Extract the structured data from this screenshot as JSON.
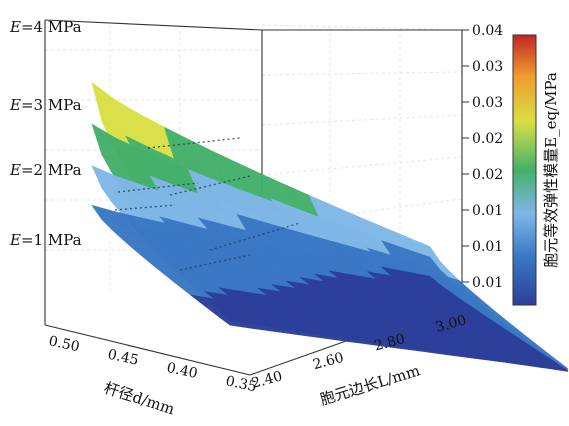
{
  "chart_data": {
    "type": "surface3d",
    "title": "",
    "xlabel": "杆径d/mm",
    "ylabel": "胞元边长L/mm",
    "zlabel": "胞元等效弹性模量E_eq/MPa",
    "x_ticks": [
      "0.50",
      "0.45",
      "0.40",
      "0.35"
    ],
    "y_ticks": [
      "2.40",
      "2.60",
      "2.80",
      "3.00"
    ],
    "z_ticks": [
      "0.01",
      "0.01",
      "0.01",
      "0.02",
      "0.02",
      "0.03",
      "0.03",
      "0.04"
    ],
    "zlim": [
      0,
      0.04
    ],
    "colorbar_range": [
      0,
      0.04
    ],
    "colormap": [
      "#2c3f9a",
      "#3a78c4",
      "#7fb7e6",
      "#44b06a",
      "#d9df44",
      "#ef9a2e",
      "#c02626"
    ],
    "grid": true,
    "series": [
      {
        "name": "E=1 MPa",
        "label_text": "E=1 MPa",
        "x": [
          0.5,
          0.35
        ],
        "y": [
          2.4,
          3.0
        ],
        "z": [
          [
            0.008,
            0.004
          ],
          [
            0.003,
            0.0015
          ]
        ]
      },
      {
        "name": "E=2 MPa",
        "label_text": "E=2 MPa",
        "x": [
          0.5,
          0.35
        ],
        "y": [
          2.4,
          3.0
        ],
        "z": [
          [
            0.016,
            0.008
          ],
          [
            0.006,
            0.003
          ]
        ]
      },
      {
        "name": "E=3 MPa",
        "label_text": "E=3 MPa",
        "x": [
          0.5,
          0.35
        ],
        "y": [
          2.4,
          3.0
        ],
        "z": [
          [
            0.024,
            0.012
          ],
          [
            0.009,
            0.0045
          ]
        ]
      },
      {
        "name": "E=4 MPa",
        "label_text": "E=4 MPa",
        "x": [
          0.5,
          0.35
        ],
        "y": [
          2.4,
          3.0
        ],
        "z": [
          [
            0.032,
            0.016
          ],
          [
            0.012,
            0.006
          ]
        ]
      }
    ]
  }
}
